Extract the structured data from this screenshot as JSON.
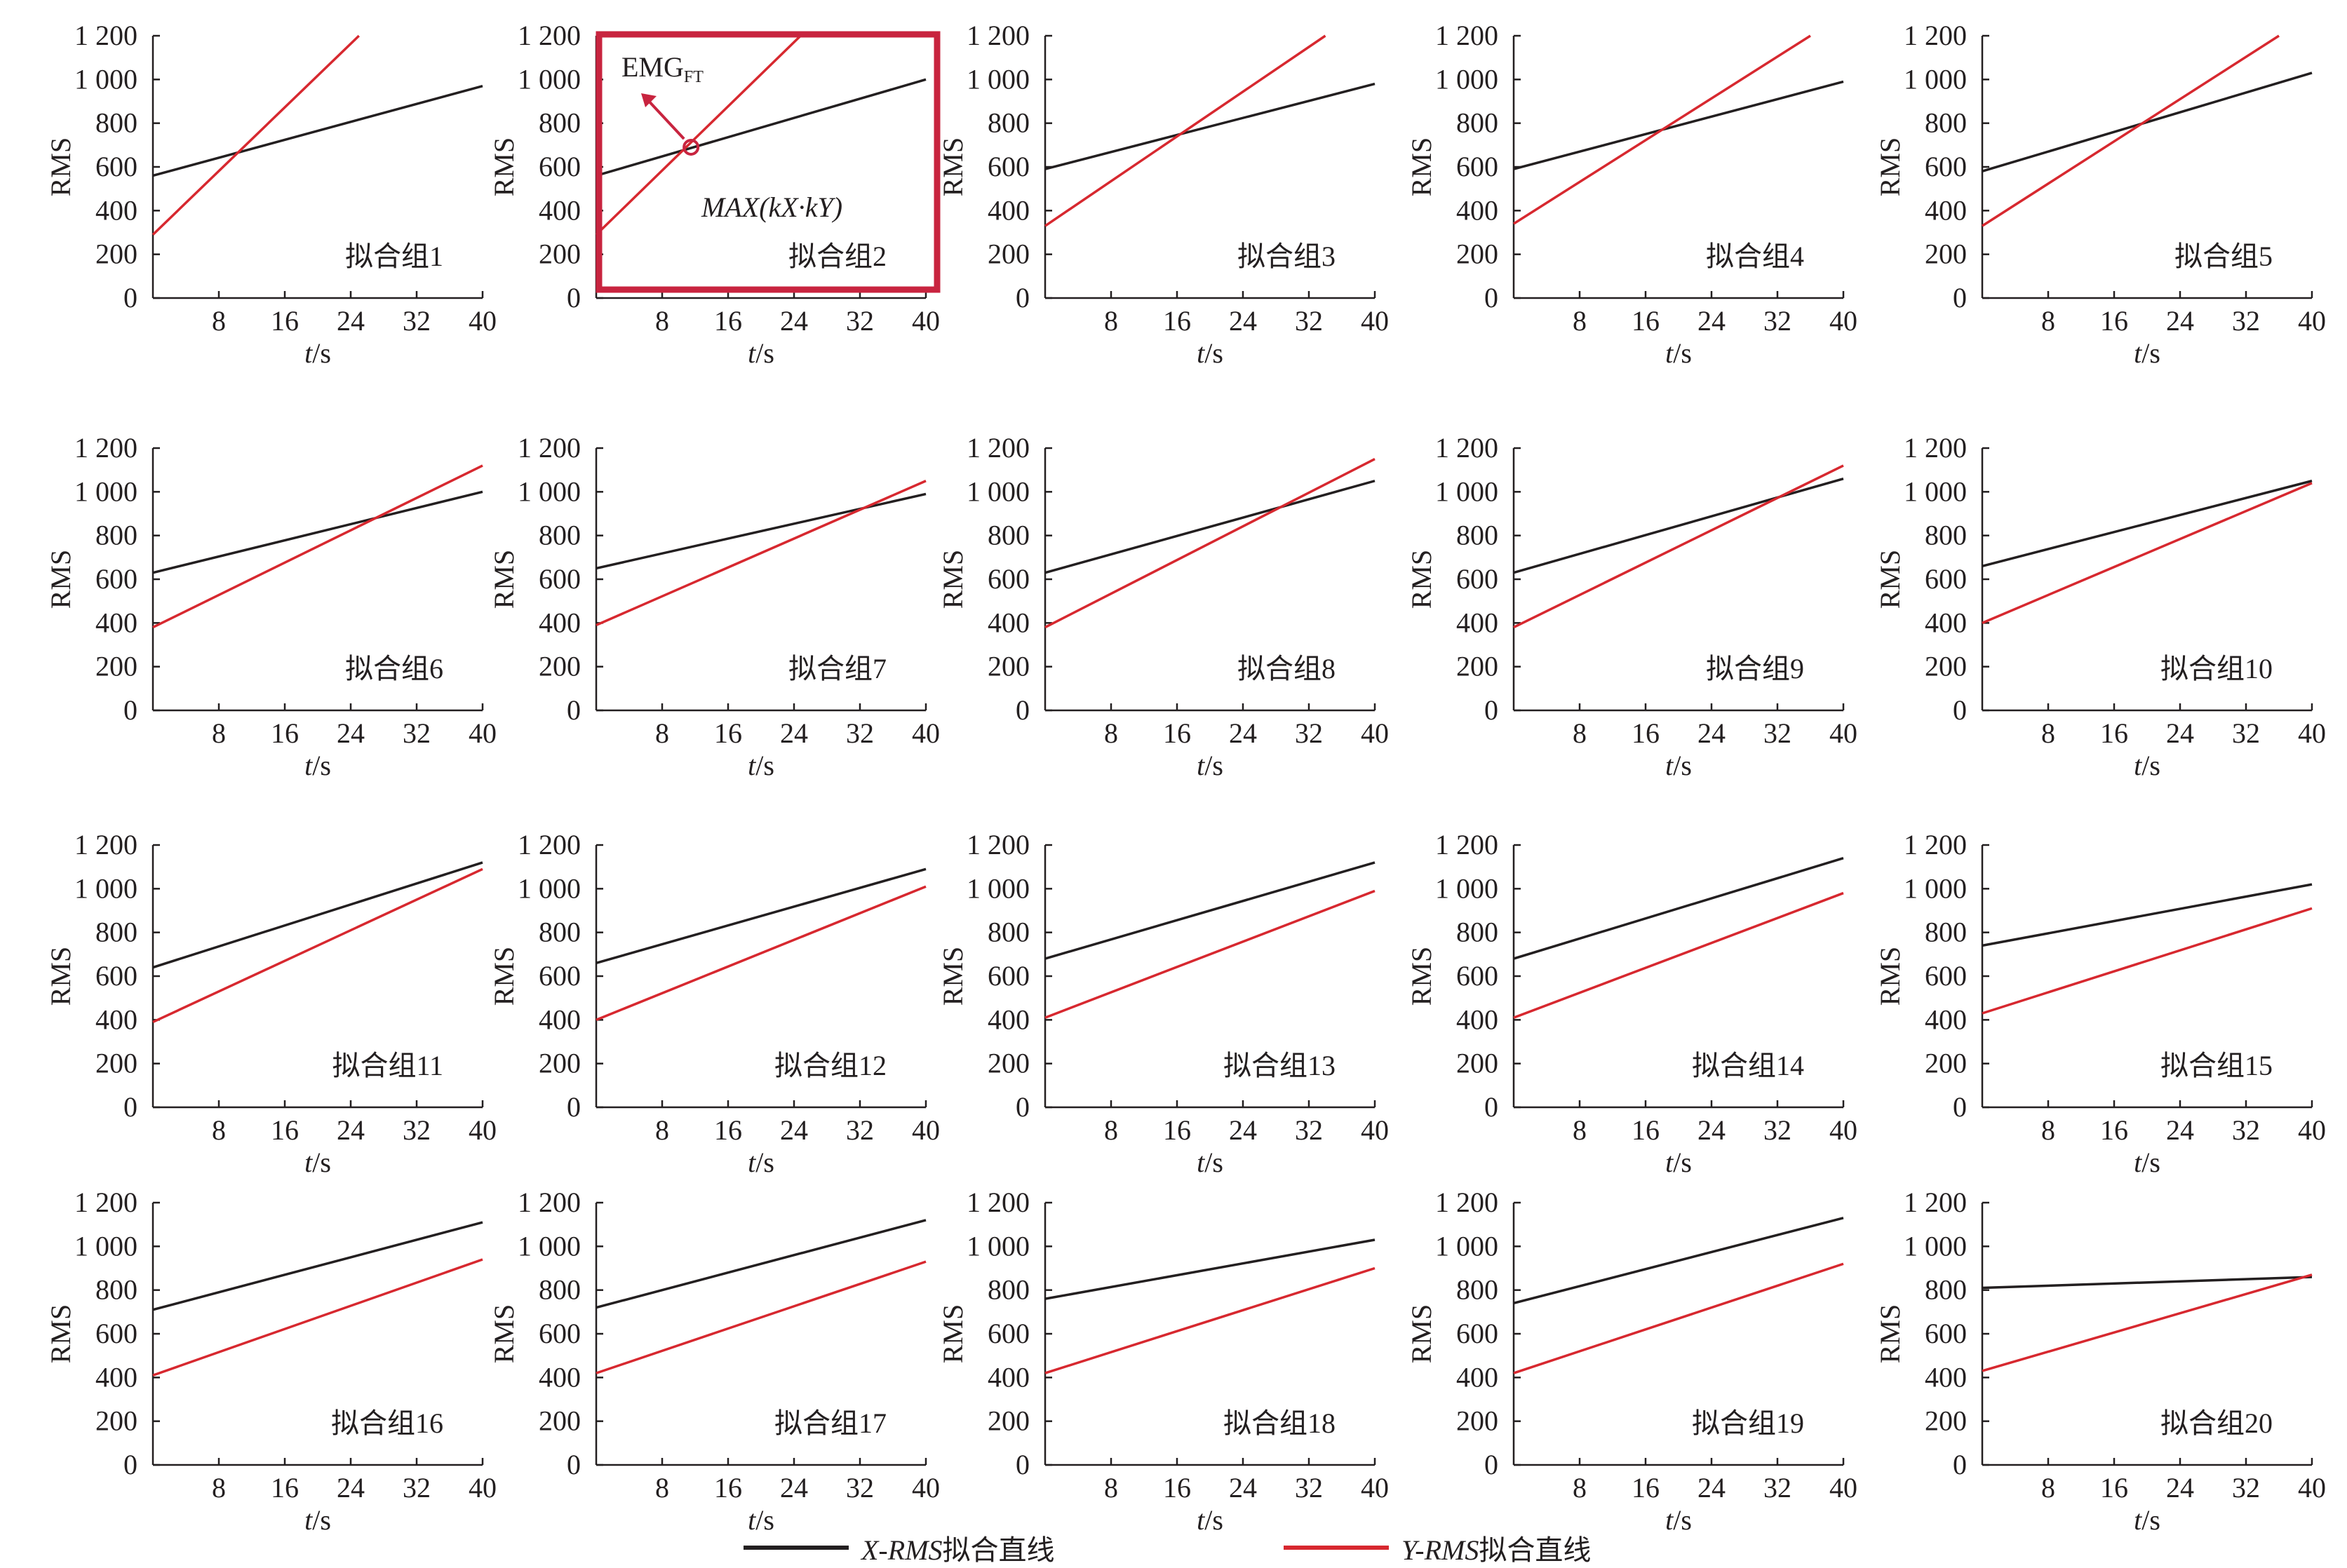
{
  "legend": {
    "x_series": {
      "var": "X-RMS",
      "text": "拟合直线",
      "color": "#231f20"
    },
    "y_series": {
      "var": "Y-RMS",
      "text": "拟合直线",
      "color": "#d7282f"
    }
  },
  "colors": {
    "axis": "#231f20",
    "x_line": "#231f20",
    "y_line": "#d7282f",
    "highlight": "#c8243f"
  },
  "highlight": {
    "panel": 2,
    "annotation_main": "EMG",
    "annotation_sub": "FT",
    "formula": "MAX(kX·kY)"
  },
  "chart_data": [
    {
      "type": "line",
      "panel_label": "拟合组1",
      "xlabel_var": "t",
      "xlabel_unit": "/s",
      "ylabel": "RMS",
      "xlim": [
        0,
        40
      ],
      "ylim": [
        0,
        1200
      ],
      "x_ticks": [
        "8",
        "16",
        "24",
        "32",
        "40"
      ],
      "y_ticks": [
        "0",
        "200",
        "400",
        "600",
        "800",
        "1 000",
        "1 200"
      ],
      "series": [
        {
          "color": "black",
          "x": [
            0,
            40
          ],
          "y": [
            560,
            970
          ]
        },
        {
          "color": "red",
          "x": [
            0,
            25
          ],
          "y": [
            290,
            1200
          ]
        }
      ]
    },
    {
      "type": "line",
      "panel_label": "拟合组2",
      "xlabel_var": "t",
      "xlabel_unit": "/s",
      "ylabel": "RMS",
      "xlim": [
        0,
        40
      ],
      "ylim": [
        0,
        1200
      ],
      "x_ticks": [
        "8",
        "16",
        "24",
        "32",
        "40"
      ],
      "y_ticks": [
        "0",
        "200",
        "400",
        "600",
        "800",
        "1 000",
        "1 200"
      ],
      "series": [
        {
          "color": "black",
          "x": [
            0,
            40
          ],
          "y": [
            560,
            1000
          ]
        },
        {
          "color": "red",
          "x": [
            0,
            24.8
          ],
          "y": [
            290,
            1200
          ]
        }
      ],
      "marker": {
        "x": 11.5,
        "y": 690
      }
    },
    {
      "type": "line",
      "panel_label": "拟合组3",
      "xlabel_var": "t",
      "xlabel_unit": "/s",
      "ylabel": "RMS",
      "xlim": [
        0,
        40
      ],
      "ylim": [
        0,
        1200
      ],
      "x_ticks": [
        "8",
        "16",
        "24",
        "32",
        "40"
      ],
      "y_ticks": [
        "0",
        "200",
        "400",
        "600",
        "800",
        "1 000",
        "1 200"
      ],
      "series": [
        {
          "color": "black",
          "x": [
            0,
            40
          ],
          "y": [
            590,
            980
          ]
        },
        {
          "color": "red",
          "x": [
            0,
            34
          ],
          "y": [
            330,
            1200
          ]
        }
      ]
    },
    {
      "type": "line",
      "panel_label": "拟合组4",
      "xlabel_var": "t",
      "xlabel_unit": "/s",
      "ylabel": "RMS",
      "xlim": [
        0,
        40
      ],
      "ylim": [
        0,
        1200
      ],
      "x_ticks": [
        "8",
        "16",
        "24",
        "32",
        "40"
      ],
      "y_ticks": [
        "0",
        "200",
        "400",
        "600",
        "800",
        "1 000",
        "1 200"
      ],
      "series": [
        {
          "color": "black",
          "x": [
            0,
            40
          ],
          "y": [
            590,
            990
          ]
        },
        {
          "color": "red",
          "x": [
            0,
            36
          ],
          "y": [
            340,
            1200
          ]
        }
      ]
    },
    {
      "type": "line",
      "panel_label": "拟合组5",
      "xlabel_var": "t",
      "xlabel_unit": "/s",
      "ylabel": "RMS",
      "xlim": [
        0,
        40
      ],
      "ylim": [
        0,
        1200
      ],
      "x_ticks": [
        "8",
        "16",
        "24",
        "32",
        "40"
      ],
      "y_ticks": [
        "0",
        "200",
        "400",
        "600",
        "800",
        "1 000",
        "1 200"
      ],
      "series": [
        {
          "color": "black",
          "x": [
            0,
            40
          ],
          "y": [
            580,
            1030
          ]
        },
        {
          "color": "red",
          "x": [
            0,
            36
          ],
          "y": [
            330,
            1200
          ]
        }
      ]
    },
    {
      "type": "line",
      "panel_label": "拟合组6",
      "xlabel_var": "t",
      "xlabel_unit": "/s",
      "ylabel": "RMS",
      "xlim": [
        0,
        40
      ],
      "ylim": [
        0,
        1200
      ],
      "x_ticks": [
        "8",
        "16",
        "24",
        "32",
        "40"
      ],
      "y_ticks": [
        "0",
        "200",
        "400",
        "600",
        "800",
        "1 000",
        "1 200"
      ],
      "series": [
        {
          "color": "black",
          "x": [
            0,
            40
          ],
          "y": [
            630,
            1000
          ]
        },
        {
          "color": "red",
          "x": [
            0,
            40
          ],
          "y": [
            380,
            1120
          ]
        }
      ]
    },
    {
      "type": "line",
      "panel_label": "拟合组7",
      "xlabel_var": "t",
      "xlabel_unit": "/s",
      "ylabel": "RMS",
      "xlim": [
        0,
        40
      ],
      "ylim": [
        0,
        1200
      ],
      "x_ticks": [
        "8",
        "16",
        "24",
        "32",
        "40"
      ],
      "y_ticks": [
        "0",
        "200",
        "400",
        "600",
        "800",
        "1 000",
        "1 200"
      ],
      "series": [
        {
          "color": "black",
          "x": [
            0,
            40
          ],
          "y": [
            650,
            990
          ]
        },
        {
          "color": "red",
          "x": [
            0,
            40
          ],
          "y": [
            390,
            1050
          ]
        }
      ]
    },
    {
      "type": "line",
      "panel_label": "拟合组8",
      "xlabel_var": "t",
      "xlabel_unit": "/s",
      "ylabel": "RMS",
      "xlim": [
        0,
        40
      ],
      "ylim": [
        0,
        1200
      ],
      "x_ticks": [
        "8",
        "16",
        "24",
        "32",
        "40"
      ],
      "y_ticks": [
        "0",
        "200",
        "400",
        "600",
        "800",
        "1 000",
        "1 200"
      ],
      "series": [
        {
          "color": "black",
          "x": [
            0,
            40
          ],
          "y": [
            630,
            1050
          ]
        },
        {
          "color": "red",
          "x": [
            0,
            40
          ],
          "y": [
            380,
            1150
          ]
        }
      ]
    },
    {
      "type": "line",
      "panel_label": "拟合组9",
      "xlabel_var": "t",
      "xlabel_unit": "/s",
      "ylabel": "RMS",
      "xlim": [
        0,
        40
      ],
      "ylim": [
        0,
        1200
      ],
      "x_ticks": [
        "8",
        "16",
        "24",
        "32",
        "40"
      ],
      "y_ticks": [
        "0",
        "200",
        "400",
        "600",
        "800",
        "1 000",
        "1 200"
      ],
      "series": [
        {
          "color": "black",
          "x": [
            0,
            40
          ],
          "y": [
            630,
            1060
          ]
        },
        {
          "color": "red",
          "x": [
            0,
            40
          ],
          "y": [
            380,
            1120
          ]
        }
      ]
    },
    {
      "type": "line",
      "panel_label": "拟合组10",
      "xlabel_var": "t",
      "xlabel_unit": "/s",
      "ylabel": "RMS",
      "xlim": [
        0,
        40
      ],
      "ylim": [
        0,
        1200
      ],
      "x_ticks": [
        "8",
        "16",
        "24",
        "32",
        "40"
      ],
      "y_ticks": [
        "0",
        "200",
        "400",
        "600",
        "800",
        "1 000",
        "1 200"
      ],
      "series": [
        {
          "color": "black",
          "x": [
            0,
            40
          ],
          "y": [
            660,
            1050
          ]
        },
        {
          "color": "red",
          "x": [
            0,
            40
          ],
          "y": [
            400,
            1040
          ]
        }
      ]
    },
    {
      "type": "line",
      "panel_label": "拟合组11",
      "xlabel_var": "t",
      "xlabel_unit": "/s",
      "ylabel": "RMS",
      "xlim": [
        0,
        40
      ],
      "ylim": [
        0,
        1200
      ],
      "x_ticks": [
        "8",
        "16",
        "24",
        "32",
        "40"
      ],
      "y_ticks": [
        "0",
        "200",
        "400",
        "600",
        "800",
        "1 000",
        "1 200"
      ],
      "series": [
        {
          "color": "black",
          "x": [
            0,
            40
          ],
          "y": [
            640,
            1120
          ]
        },
        {
          "color": "red",
          "x": [
            0,
            40
          ],
          "y": [
            390,
            1090
          ]
        }
      ]
    },
    {
      "type": "line",
      "panel_label": "拟合组12",
      "xlabel_var": "t",
      "xlabel_unit": "/s",
      "ylabel": "RMS",
      "xlim": [
        0,
        40
      ],
      "ylim": [
        0,
        1200
      ],
      "x_ticks": [
        "8",
        "16",
        "24",
        "32",
        "40"
      ],
      "y_ticks": [
        "0",
        "200",
        "400",
        "600",
        "800",
        "1 000",
        "1 200"
      ],
      "series": [
        {
          "color": "black",
          "x": [
            0,
            40
          ],
          "y": [
            660,
            1090
          ]
        },
        {
          "color": "red",
          "x": [
            0,
            40
          ],
          "y": [
            400,
            1010
          ]
        }
      ]
    },
    {
      "type": "line",
      "panel_label": "拟合组13",
      "xlabel_var": "t",
      "xlabel_unit": "/s",
      "ylabel": "RMS",
      "xlim": [
        0,
        40
      ],
      "ylim": [
        0,
        1200
      ],
      "x_ticks": [
        "8",
        "16",
        "24",
        "32",
        "40"
      ],
      "y_ticks": [
        "0",
        "200",
        "400",
        "600",
        "800",
        "1 000",
        "1 200"
      ],
      "series": [
        {
          "color": "black",
          "x": [
            0,
            40
          ],
          "y": [
            680,
            1120
          ]
        },
        {
          "color": "red",
          "x": [
            0,
            40
          ],
          "y": [
            410,
            990
          ]
        }
      ]
    },
    {
      "type": "line",
      "panel_label": "拟合组14",
      "xlabel_var": "t",
      "xlabel_unit": "/s",
      "ylabel": "RMS",
      "xlim": [
        0,
        40
      ],
      "ylim": [
        0,
        1200
      ],
      "x_ticks": [
        "8",
        "16",
        "24",
        "32",
        "40"
      ],
      "y_ticks": [
        "0",
        "200",
        "400",
        "600",
        "800",
        "1 000",
        "1 200"
      ],
      "series": [
        {
          "color": "black",
          "x": [
            0,
            40
          ],
          "y": [
            680,
            1140
          ]
        },
        {
          "color": "red",
          "x": [
            0,
            40
          ],
          "y": [
            410,
            980
          ]
        }
      ]
    },
    {
      "type": "line",
      "panel_label": "拟合组15",
      "xlabel_var": "t",
      "xlabel_unit": "/s",
      "ylabel": "RMS",
      "xlim": [
        0,
        40
      ],
      "ylim": [
        0,
        1200
      ],
      "x_ticks": [
        "8",
        "16",
        "24",
        "32",
        "40"
      ],
      "y_ticks": [
        "0",
        "200",
        "400",
        "600",
        "800",
        "1 000",
        "1 200"
      ],
      "series": [
        {
          "color": "black",
          "x": [
            0,
            40
          ],
          "y": [
            740,
            1020
          ]
        },
        {
          "color": "red",
          "x": [
            0,
            40
          ],
          "y": [
            430,
            910
          ]
        }
      ]
    },
    {
      "type": "line",
      "panel_label": "拟合组16",
      "xlabel_var": "t",
      "xlabel_unit": "/s",
      "ylabel": "RMS",
      "xlim": [
        0,
        40
      ],
      "ylim": [
        0,
        1200
      ],
      "x_ticks": [
        "8",
        "16",
        "24",
        "32",
        "40"
      ],
      "y_ticks": [
        "0",
        "200",
        "400",
        "600",
        "800",
        "1 000",
        "1 200"
      ],
      "series": [
        {
          "color": "black",
          "x": [
            0,
            40
          ],
          "y": [
            710,
            1110
          ]
        },
        {
          "color": "red",
          "x": [
            0,
            40
          ],
          "y": [
            410,
            940
          ]
        }
      ]
    },
    {
      "type": "line",
      "panel_label": "拟合组17",
      "xlabel_var": "t",
      "xlabel_unit": "/s",
      "ylabel": "RMS",
      "xlim": [
        0,
        40
      ],
      "ylim": [
        0,
        1200
      ],
      "x_ticks": [
        "8",
        "16",
        "24",
        "32",
        "40"
      ],
      "y_ticks": [
        "0",
        "200",
        "400",
        "600",
        "800",
        "1 000",
        "1 200"
      ],
      "series": [
        {
          "color": "black",
          "x": [
            0,
            40
          ],
          "y": [
            720,
            1120
          ]
        },
        {
          "color": "red",
          "x": [
            0,
            40
          ],
          "y": [
            420,
            930
          ]
        }
      ]
    },
    {
      "type": "line",
      "panel_label": "拟合组18",
      "xlabel_var": "t",
      "xlabel_unit": "/s",
      "ylabel": "RMS",
      "xlim": [
        0,
        40
      ],
      "ylim": [
        0,
        1200
      ],
      "x_ticks": [
        "8",
        "16",
        "24",
        "32",
        "40"
      ],
      "y_ticks": [
        "0",
        "200",
        "400",
        "600",
        "800",
        "1 000",
        "1 200"
      ],
      "series": [
        {
          "color": "black",
          "x": [
            0,
            40
          ],
          "y": [
            760,
            1030
          ]
        },
        {
          "color": "red",
          "x": [
            0,
            40
          ],
          "y": [
            420,
            900
          ]
        }
      ]
    },
    {
      "type": "line",
      "panel_label": "拟合组19",
      "xlabel_var": "t",
      "xlabel_unit": "/s",
      "ylabel": "RMS",
      "xlim": [
        0,
        40
      ],
      "ylim": [
        0,
        1200
      ],
      "x_ticks": [
        "8",
        "16",
        "24",
        "32",
        "40"
      ],
      "y_ticks": [
        "0",
        "200",
        "400",
        "600",
        "800",
        "1 000",
        "1 200"
      ],
      "series": [
        {
          "color": "black",
          "x": [
            0,
            40
          ],
          "y": [
            740,
            1130
          ]
        },
        {
          "color": "red",
          "x": [
            0,
            40
          ],
          "y": [
            420,
            920
          ]
        }
      ]
    },
    {
      "type": "line",
      "panel_label": "拟合组20",
      "xlabel_var": "t",
      "xlabel_unit": "/s",
      "ylabel": "RMS",
      "xlim": [
        0,
        40
      ],
      "ylim": [
        0,
        1200
      ],
      "x_ticks": [
        "8",
        "16",
        "24",
        "32",
        "40"
      ],
      "y_ticks": [
        "0",
        "200",
        "400",
        "600",
        "800",
        "1 000",
        "1 200"
      ],
      "series": [
        {
          "color": "black",
          "x": [
            0,
            40
          ],
          "y": [
            810,
            860
          ]
        },
        {
          "color": "red",
          "x": [
            0,
            40
          ],
          "y": [
            430,
            870
          ]
        }
      ]
    }
  ]
}
